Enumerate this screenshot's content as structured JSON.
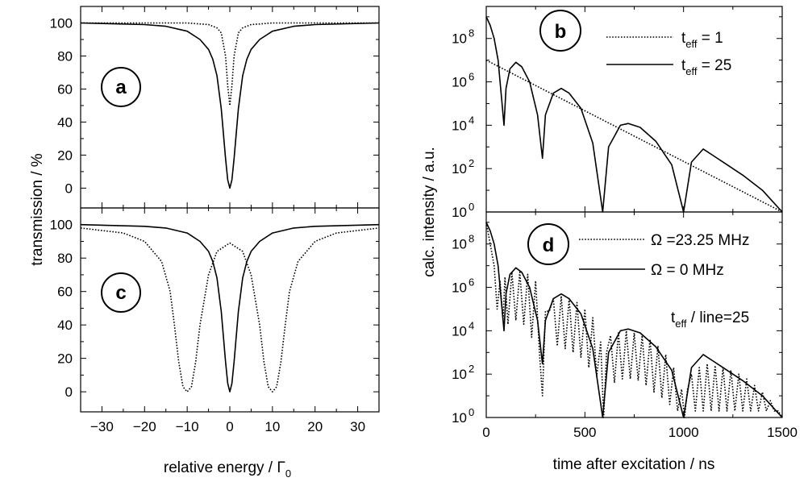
{
  "chart_data": [
    {
      "panel": "a",
      "type": "line",
      "xlim": [
        -35,
        35
      ],
      "ylim": [
        -12,
        110
      ],
      "yticks": [
        0,
        20,
        40,
        60,
        80,
        100
      ],
      "xticks": [
        -30,
        -20,
        -10,
        0,
        10,
        20,
        30
      ],
      "ylabel": "transmission / %",
      "series": [
        {
          "style": "dotted",
          "x": [
            -35,
            -10,
            -5,
            -3,
            -2,
            -1,
            -0.5,
            0,
            0.5,
            1,
            2,
            3,
            5,
            10,
            35
          ],
          "y": [
            100,
            100,
            99,
            97,
            94,
            80,
            62,
            50,
            62,
            80,
            94,
            97,
            99,
            100,
            100
          ]
        },
        {
          "style": "solid",
          "x": [
            -35,
            -20,
            -15,
            -10,
            -7,
            -5,
            -4,
            -3,
            -2,
            -1,
            -0.5,
            0,
            0.5,
            1,
            2,
            3,
            4,
            5,
            7,
            10,
            15,
            20,
            35
          ],
          "y": [
            100,
            99,
            98,
            95,
            90,
            84,
            78,
            68,
            48,
            18,
            5,
            0,
            5,
            18,
            48,
            68,
            78,
            84,
            90,
            95,
            98,
            99,
            100
          ]
        }
      ]
    },
    {
      "panel": "c",
      "type": "line",
      "xlim": [
        -35,
        35
      ],
      "ylim": [
        -12,
        110
      ],
      "yticks": [
        0,
        20,
        40,
        60,
        80,
        100
      ],
      "xticks": [
        -30,
        -20,
        -10,
        0,
        10,
        20,
        30
      ],
      "xlabel": "relative energy / Γ",
      "xlabel_sub": "0",
      "series": [
        {
          "style": "dotted",
          "x": [
            -35,
            -25,
            -20,
            -16,
            -14,
            -13,
            -12,
            -11,
            -10,
            -9,
            -8,
            -7,
            -5,
            -3,
            0,
            3,
            5,
            7,
            8,
            9,
            10,
            11,
            12,
            13,
            14,
            16,
            20,
            25,
            35
          ],
          "y": [
            98,
            95,
            90,
            78,
            60,
            40,
            18,
            3,
            0,
            3,
            18,
            40,
            70,
            84,
            89,
            84,
            70,
            40,
            18,
            3,
            0,
            3,
            18,
            40,
            60,
            78,
            90,
            95,
            98
          ]
        },
        {
          "style": "solid",
          "x": [
            -35,
            -20,
            -15,
            -10,
            -7,
            -5,
            -4,
            -3,
            -2,
            -1,
            -0.5,
            0,
            0.5,
            1,
            2,
            3,
            4,
            5,
            7,
            10,
            15,
            20,
            35
          ],
          "y": [
            100,
            99,
            98,
            95,
            90,
            84,
            78,
            68,
            48,
            18,
            5,
            0,
            5,
            18,
            48,
            68,
            78,
            84,
            90,
            95,
            98,
            99,
            100
          ]
        }
      ]
    },
    {
      "panel": "b",
      "type": "line",
      "yscale": "log",
      "xlim": [
        0,
        1500
      ],
      "ylim": [
        1,
        3000000000
      ],
      "ytick_exponents": [
        0,
        2,
        4,
        6,
        8
      ],
      "ylabel": "calc. intensity / a.u.",
      "legend": [
        {
          "style": "dotted",
          "label": "t",
          "sub": "eff",
          "suffix": " = 1"
        },
        {
          "style": "solid",
          "label": "t",
          "sub": "eff",
          "suffix": " = 25"
        }
      ],
      "series": [
        {
          "style": "dotted",
          "x": [
            0,
            1500
          ],
          "y": [
            10000000,
            1
          ]
        },
        {
          "style": "solid",
          "x": [
            0,
            20,
            40,
            60,
            80,
            90,
            100,
            120,
            150,
            180,
            220,
            260,
            285,
            300,
            340,
            380,
            420,
            480,
            540,
            590,
            620,
            680,
            720,
            780,
            860,
            940,
            1000,
            1040,
            1100,
            1150,
            1200,
            1300,
            1400,
            1500
          ],
          "y": [
            1000000000,
            400000000,
            100000000,
            10000000,
            100000,
            10000,
            500000,
            4000000,
            8000000,
            5000000,
            1000000,
            30000,
            300,
            30000,
            300000,
            500000,
            300000,
            60000,
            1500,
            1,
            1000,
            10000,
            12000,
            8000,
            1800,
            150,
            1,
            200,
            800,
            400,
            200,
            50,
            10,
            1
          ]
        }
      ]
    },
    {
      "panel": "d",
      "type": "line",
      "yscale": "log",
      "xlim": [
        0,
        1500
      ],
      "ylim": [
        1,
        3000000000
      ],
      "ytick_exponents": [
        0,
        2,
        4,
        6,
        8
      ],
      "xticks": [
        0,
        500,
        1000,
        1500
      ],
      "xlabel": "time after excitation / ns",
      "legend": [
        {
          "style": "dotted",
          "label": "Ω =23.25 MHz"
        },
        {
          "style": "solid",
          "label": "Ω  =  0 MHz"
        }
      ],
      "annotation": {
        "label": "t",
        "sub": "eff",
        "suffix": " / line=25"
      },
      "series": [
        {
          "style": "dotted",
          "x": [
            0,
            20,
            40,
            55,
            70,
            85,
            95,
            110,
            130,
            150,
            170,
            190,
            210,
            230,
            250,
            270,
            285,
            300,
            320,
            340,
            360,
            380,
            400,
            420,
            440,
            460,
            480,
            500,
            520,
            540,
            560,
            580,
            595,
            610,
            630,
            650,
            670,
            690,
            710,
            730,
            750,
            770,
            790,
            810,
            830,
            850,
            870,
            890,
            910,
            930,
            950,
            970,
            990,
            1005,
            1020,
            1040,
            1060,
            1080,
            1100,
            1120,
            1140,
            1160,
            1180,
            1200,
            1220,
            1240,
            1260,
            1280,
            1300,
            1320,
            1340,
            1360,
            1380,
            1400,
            1420,
            1440,
            1460,
            1480,
            1500
          ],
          "y": [
            1000000000,
            100000000,
            10000000,
            100000,
            2000000,
            30000,
            3000000,
            20000,
            5000000,
            30000,
            5000000,
            20000,
            4000000,
            5000,
            2000000,
            800,
            10,
            80000,
            80000,
            300000,
            2000,
            400000,
            1500,
            300000,
            1000,
            200000,
            600,
            100000,
            200,
            40000,
            80,
            3000,
            1,
            1000,
            6000,
            40,
            8000,
            60,
            10000,
            60,
            8000,
            50,
            6000,
            30,
            4000,
            15,
            2000,
            8,
            800,
            4,
            200,
            2,
            20,
            1,
            20,
            100,
            2,
            200,
            2,
            300,
            2,
            250,
            2,
            200,
            2,
            150,
            2,
            100,
            2,
            60,
            2,
            30,
            2,
            15,
            2,
            6,
            2,
            2,
            1
          ]
        },
        {
          "style": "solid",
          "x": [
            0,
            20,
            40,
            60,
            80,
            90,
            100,
            120,
            150,
            180,
            220,
            260,
            285,
            300,
            340,
            380,
            420,
            480,
            540,
            590,
            620,
            680,
            720,
            780,
            860,
            940,
            1000,
            1040,
            1100,
            1150,
            1200,
            1300,
            1400,
            1500
          ],
          "y": [
            1000000000,
            400000000,
            100000000,
            10000000,
            100000,
            10000,
            500000,
            4000000,
            8000000,
            5000000,
            1000000,
            30000,
            300,
            30000,
            300000,
            500000,
            300000,
            60000,
            1500,
            1,
            1000,
            10000,
            12000,
            8000,
            1800,
            150,
            1,
            200,
            800,
            400,
            200,
            50,
            10,
            1
          ]
        }
      ]
    }
  ]
}
